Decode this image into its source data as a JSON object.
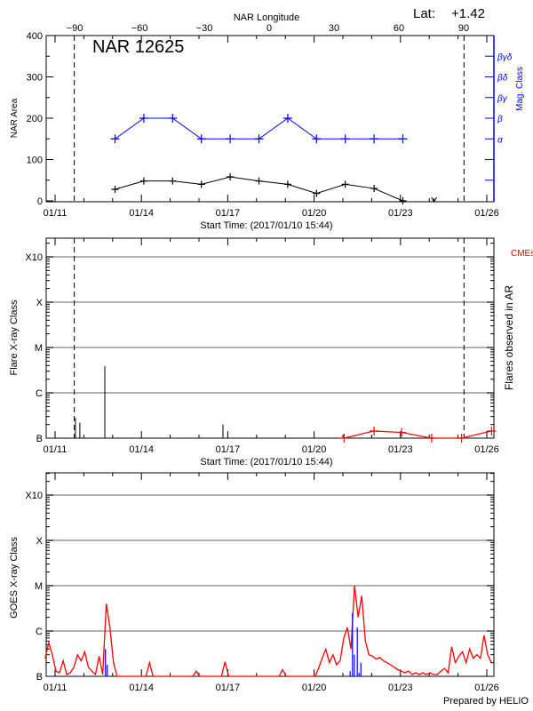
{
  "header": {
    "lat_label": "Lat:",
    "lat_value": "+1.42",
    "prepared_by": "Prepared by HELIO"
  },
  "colors": {
    "area": "#000000",
    "mag_class": "#0000ff",
    "cme": "#ff0000",
    "goes_long": "#ff0000",
    "goes_short": "#0000ff",
    "grid": "#999999"
  },
  "chart_data": [
    {
      "type": "line",
      "title": "NAR 12625",
      "top_axis_label": "NAR Longitude",
      "top_ticks": [
        -90,
        -60,
        -30,
        0,
        30,
        60,
        90
      ],
      "xlabel": "Start Time: (2017/01/10 15:44)",
      "x_ticks": [
        "01/11",
        "01/14",
        "01/17",
        "01/20",
        "01/23",
        "01/26"
      ],
      "ylabel": "NAR Area",
      "ylim": [
        0,
        400
      ],
      "y_ticks": [
        0,
        100,
        200,
        300,
        400
      ],
      "right_label": "Mag. Class",
      "right_ticks": [
        {
          "label": "α",
          "value": 150
        },
        {
          "label": "β",
          "value": 200
        },
        {
          "label": "βγ",
          "value": 250
        },
        {
          "label": "βδ",
          "value": 300
        },
        {
          "label": "βγδ",
          "value": 350
        }
      ],
      "limb_times": [
        "01/11 16:00",
        "01/25 05:00"
      ],
      "series": [
        {
          "key": "area",
          "x": [
            "01/13 02:00",
            "01/14 02:00",
            "01/15 02:00",
            "01/16 02:00",
            "01/17 02:00",
            "01/18 02:00",
            "01/19 02:00",
            "01/20 02:00",
            "01/21 02:00",
            "01/22 02:00",
            "01/23 02:00"
          ],
          "values": [
            28,
            48,
            48,
            40,
            58,
            48,
            40,
            18,
            40,
            30,
            0
          ]
        },
        {
          "key": "mag_class",
          "x": [
            "01/13 02:00",
            "01/14 02:00",
            "01/15 02:00",
            "01/16 02:00",
            "01/17 02:00",
            "01/18 02:00",
            "01/19 02:00",
            "01/20 02:00",
            "01/21 02:00",
            "01/22 02:00",
            "01/23 02:00"
          ],
          "values": [
            "α",
            "β",
            "β",
            "α",
            "α",
            "α",
            "β",
            "α",
            "α",
            "α",
            "α"
          ]
        }
      ],
      "below_axis_marker": "01/24 04:00"
    },
    {
      "type": "bar",
      "xlabel": "Start Time: (2017/01/10 15:44)",
      "x_ticks": [
        "01/11",
        "01/14",
        "01/17",
        "01/20",
        "01/23",
        "01/26"
      ],
      "ylabel": "Flare X-ray Class",
      "y_scale": "log",
      "y_ticks": [
        "B",
        "C",
        "M",
        "X",
        "X10"
      ],
      "right_label": "Flares observed in AR",
      "cme_label": "CMEs",
      "grid": true,
      "limb_times": [
        "01/11 16:00",
        "01/25 05:00"
      ],
      "flares": [
        {
          "time": "01/11 17:00",
          "class": "B2.8"
        },
        {
          "time": "01/11 20:40",
          "class": "B2.2"
        },
        {
          "time": "01/12 17:30",
          "class": "C3.9"
        },
        {
          "time": "01/16 20:00",
          "class": "B2.0"
        }
      ],
      "cmes": {
        "x": [
          "01/21 01:00",
          "01/22 02:00",
          "01/23 01:00",
          "01/24 02:00",
          "01/25 03:00",
          "01/26 04:00"
        ],
        "values": [
          0,
          1,
          0.8,
          0,
          0,
          1
        ],
        "ylim": [
          0,
          28
        ]
      }
    },
    {
      "type": "line",
      "x_ticks": [
        "01/11",
        "01/14",
        "01/17",
        "01/20",
        "01/23",
        "01/26"
      ],
      "ylabel": "GOES X-ray Class",
      "y_scale": "log",
      "y_ticks": [
        "B",
        "C",
        "M",
        "X",
        "X10"
      ],
      "grid": true,
      "start_time": "2017/01/10 15:44",
      "sample_interval_hours": 3,
      "units": "multiples of B1 flux",
      "long_channel": [
        2.5,
        5.5,
        3,
        1.3,
        1.2,
        2.2,
        1.1,
        1.2,
        1.6,
        3,
        2.2,
        3.5,
        1.6,
        1.3,
        1.1,
        2.8,
        1.1,
        40,
        12,
        2,
        1,
        1,
        1,
        1,
        1,
        1,
        1,
        1,
        1,
        2,
        1,
        1,
        1,
        1,
        1,
        1,
        1,
        1,
        1,
        1,
        1,
        1,
        1.3,
        1,
        1,
        1,
        1,
        1,
        1,
        1,
        2.1,
        1,
        1,
        1,
        1,
        1,
        1,
        1,
        1,
        1,
        1,
        1,
        1,
        1,
        1,
        1,
        1.4,
        1,
        1,
        1,
        1,
        1,
        1,
        1,
        1,
        1,
        1.5,
        2.5,
        4,
        2,
        3,
        1.8,
        2.2,
        7,
        12,
        4,
        100,
        20,
        60,
        6,
        3,
        2.8,
        2.4,
        2.6,
        2.2,
        2,
        1.8,
        1.6,
        1.4,
        1.3,
        1.2,
        1.3,
        1.1,
        1.2,
        1.1,
        1.2,
        1.1,
        1.2,
        1.1,
        1.1,
        1.3,
        1.5,
        1.2,
        4.5,
        2,
        2.8,
        3.5,
        2,
        4,
        2.5,
        3,
        2.5,
        8,
        3,
        2
      ],
      "short_channel": [
        {
          "time": "01/12 18:00",
          "value": 4
        },
        {
          "time": "01/12 19:30",
          "value": 1.8
        },
        {
          "time": "01/21 06:00",
          "value": 1.3
        },
        {
          "time": "01/21 08:00",
          "value": 25
        },
        {
          "time": "01/21 09:30",
          "value": 3
        },
        {
          "time": "01/21 12:00",
          "value": 12
        },
        {
          "time": "01/21 13:30",
          "value": 1.2
        },
        {
          "time": "01/21 15:00",
          "value": 2
        }
      ]
    }
  ]
}
